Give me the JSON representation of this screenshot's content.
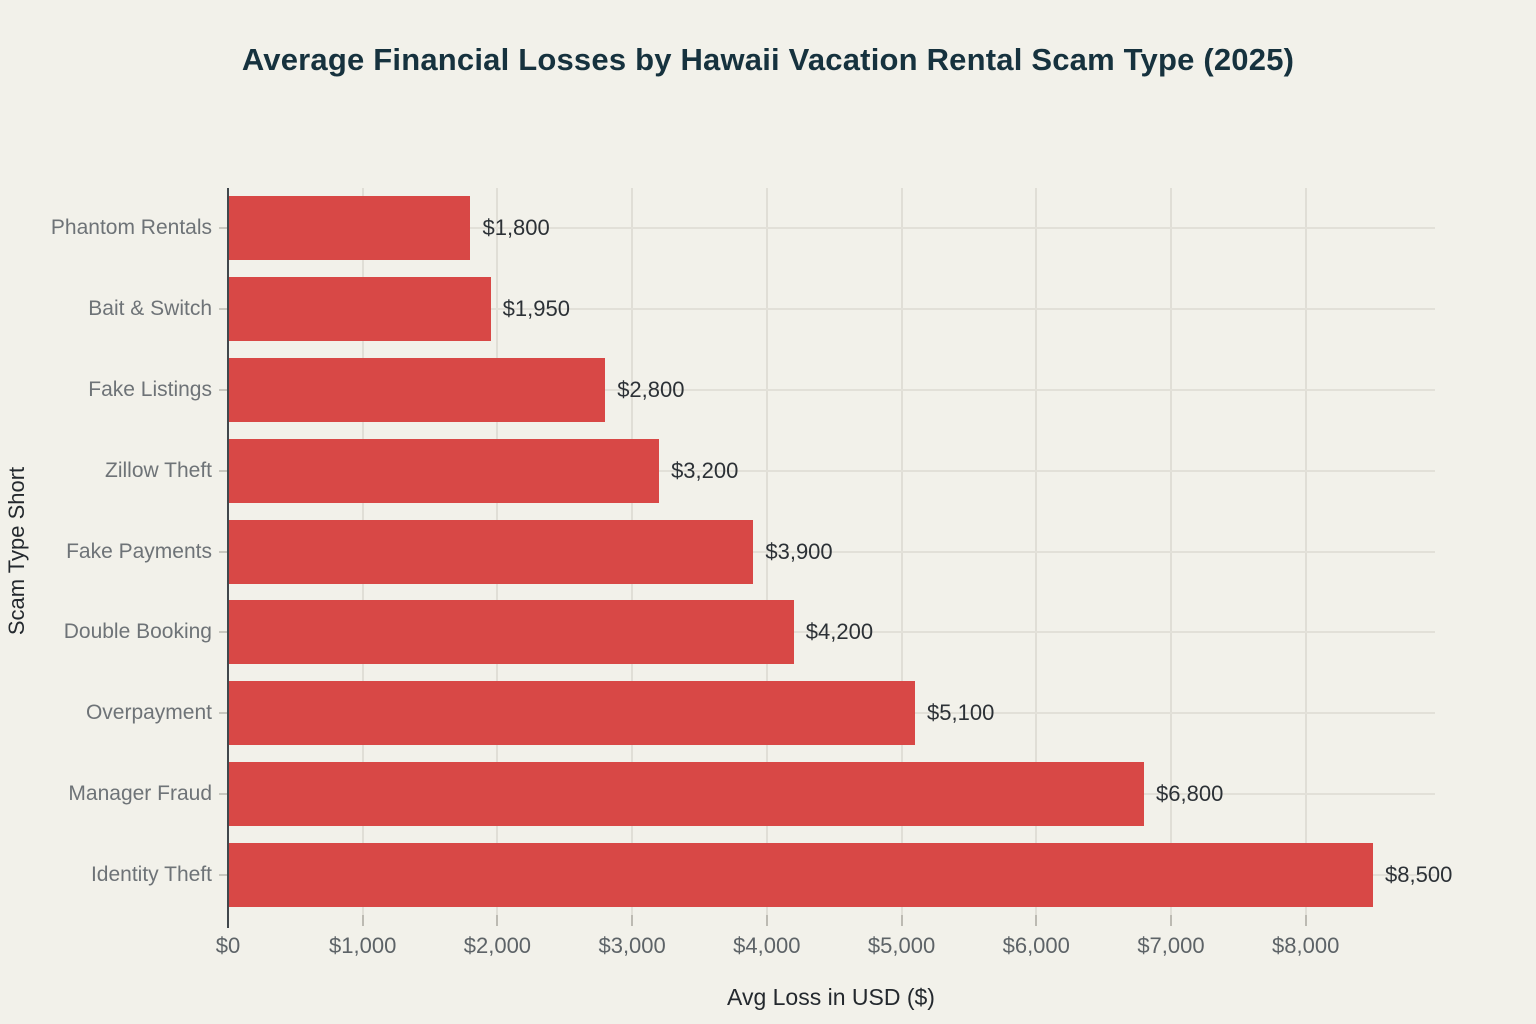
{
  "chart_data": {
    "type": "bar",
    "orientation": "horizontal",
    "title": "Average Financial Losses by Hawaii Vacation Rental Scam Type (2025)",
    "xlabel": "Avg Loss in USD ($)",
    "ylabel": "Scam Type Short",
    "categories": [
      "Phantom Rentals",
      "Bait & Switch",
      "Fake Listings",
      "Zillow Theft",
      "Fake Payments",
      "Double Booking",
      "Overpayment",
      "Manager Fraud",
      "Identity Theft"
    ],
    "values": [
      1800,
      1950,
      2800,
      3200,
      3900,
      4200,
      5100,
      6800,
      8500
    ],
    "value_labels": [
      "$1,800",
      "$1,950",
      "$2,800",
      "$3,200",
      "$3,900",
      "$4,200",
      "$5,100",
      "$6,800",
      "$8,500"
    ],
    "xlim": [
      0,
      8960
    ],
    "x_ticks": [
      0,
      1000,
      2000,
      3000,
      4000,
      5000,
      6000,
      7000,
      8000
    ],
    "x_tick_labels": [
      "$0",
      "$1,000",
      "$2,000",
      "$3,000",
      "$4,000",
      "$5,000",
      "$6,000",
      "$7,000",
      "$8,000"
    ],
    "grid": true,
    "legend": "none",
    "colors": {
      "background": "#f2f1ea",
      "bar": "#d84846",
      "gridline": "#e0ded6",
      "axis_spine": "#41474c",
      "title_text": "#16323e",
      "category_label_text": "#6e7377",
      "value_label_text": "#2c3136",
      "tick_label_text": "#5d6367",
      "axis_title_text": "#24292e"
    }
  }
}
